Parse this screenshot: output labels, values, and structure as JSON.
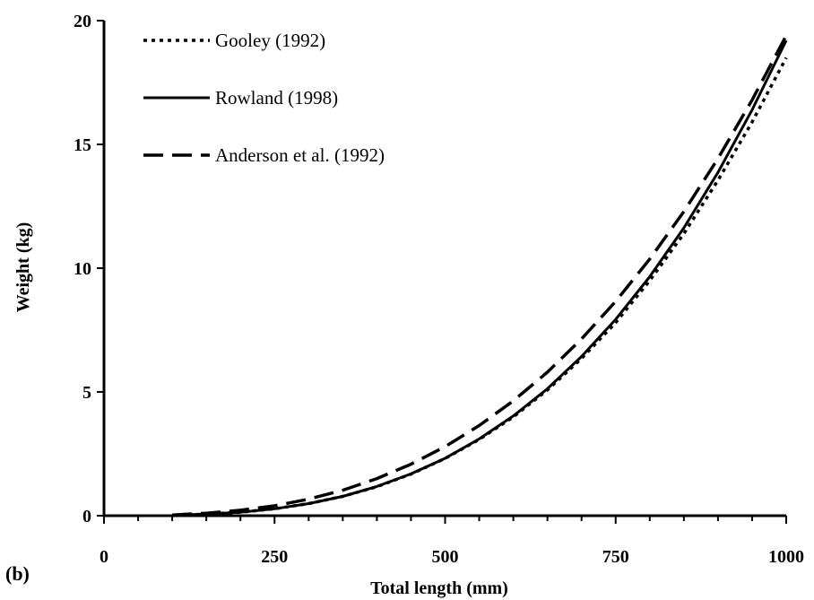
{
  "panel_label": "(b)",
  "chart_data": {
    "type": "line",
    "title": "",
    "xlabel": "Total length (mm)",
    "ylabel": "Weight (kg)",
    "xlim": [
      0,
      1000
    ],
    "ylim": [
      0,
      20
    ],
    "xticks": [
      0,
      250,
      500,
      750,
      1000
    ],
    "yticks": [
      0,
      5,
      10,
      15,
      20
    ],
    "x_minor_step": 50,
    "grid": false,
    "legend_position": "top-left",
    "series": [
      {
        "name": "Gooley (1992)",
        "line_style": "dotted",
        "x": [
          100,
          150,
          200,
          250,
          300,
          350,
          400,
          450,
          500,
          550,
          600,
          650,
          700,
          750,
          800,
          850,
          900,
          950,
          1000
        ],
        "y": [
          0.02,
          0.06,
          0.14,
          0.28,
          0.49,
          0.78,
          1.17,
          1.68,
          2.31,
          3.08,
          3.99,
          5.08,
          6.35,
          7.8,
          9.5,
          11.4,
          13.55,
          15.9,
          18.5
        ]
      },
      {
        "name": "Rowland (1998)",
        "line_style": "solid",
        "x": [
          100,
          150,
          200,
          250,
          300,
          350,
          400,
          450,
          500,
          550,
          600,
          650,
          700,
          750,
          800,
          850,
          900,
          950,
          1000
        ],
        "y": [
          0.02,
          0.06,
          0.14,
          0.28,
          0.49,
          0.78,
          1.18,
          1.69,
          2.32,
          3.1,
          4.03,
          5.13,
          6.43,
          7.93,
          9.66,
          11.63,
          13.87,
          16.39,
          19.2
        ]
      },
      {
        "name": "Anderson et al. (1992)",
        "line_style": "dashed",
        "x": [
          100,
          150,
          200,
          250,
          300,
          350,
          400,
          450,
          500,
          550,
          600,
          650,
          700,
          750,
          800,
          850,
          900,
          950,
          1000
        ],
        "y": [
          0.03,
          0.1,
          0.22,
          0.4,
          0.67,
          1.03,
          1.5,
          2.08,
          2.79,
          3.64,
          4.64,
          5.8,
          7.14,
          8.66,
          10.37,
          12.29,
          14.43,
          16.79,
          19.39
        ]
      }
    ]
  }
}
